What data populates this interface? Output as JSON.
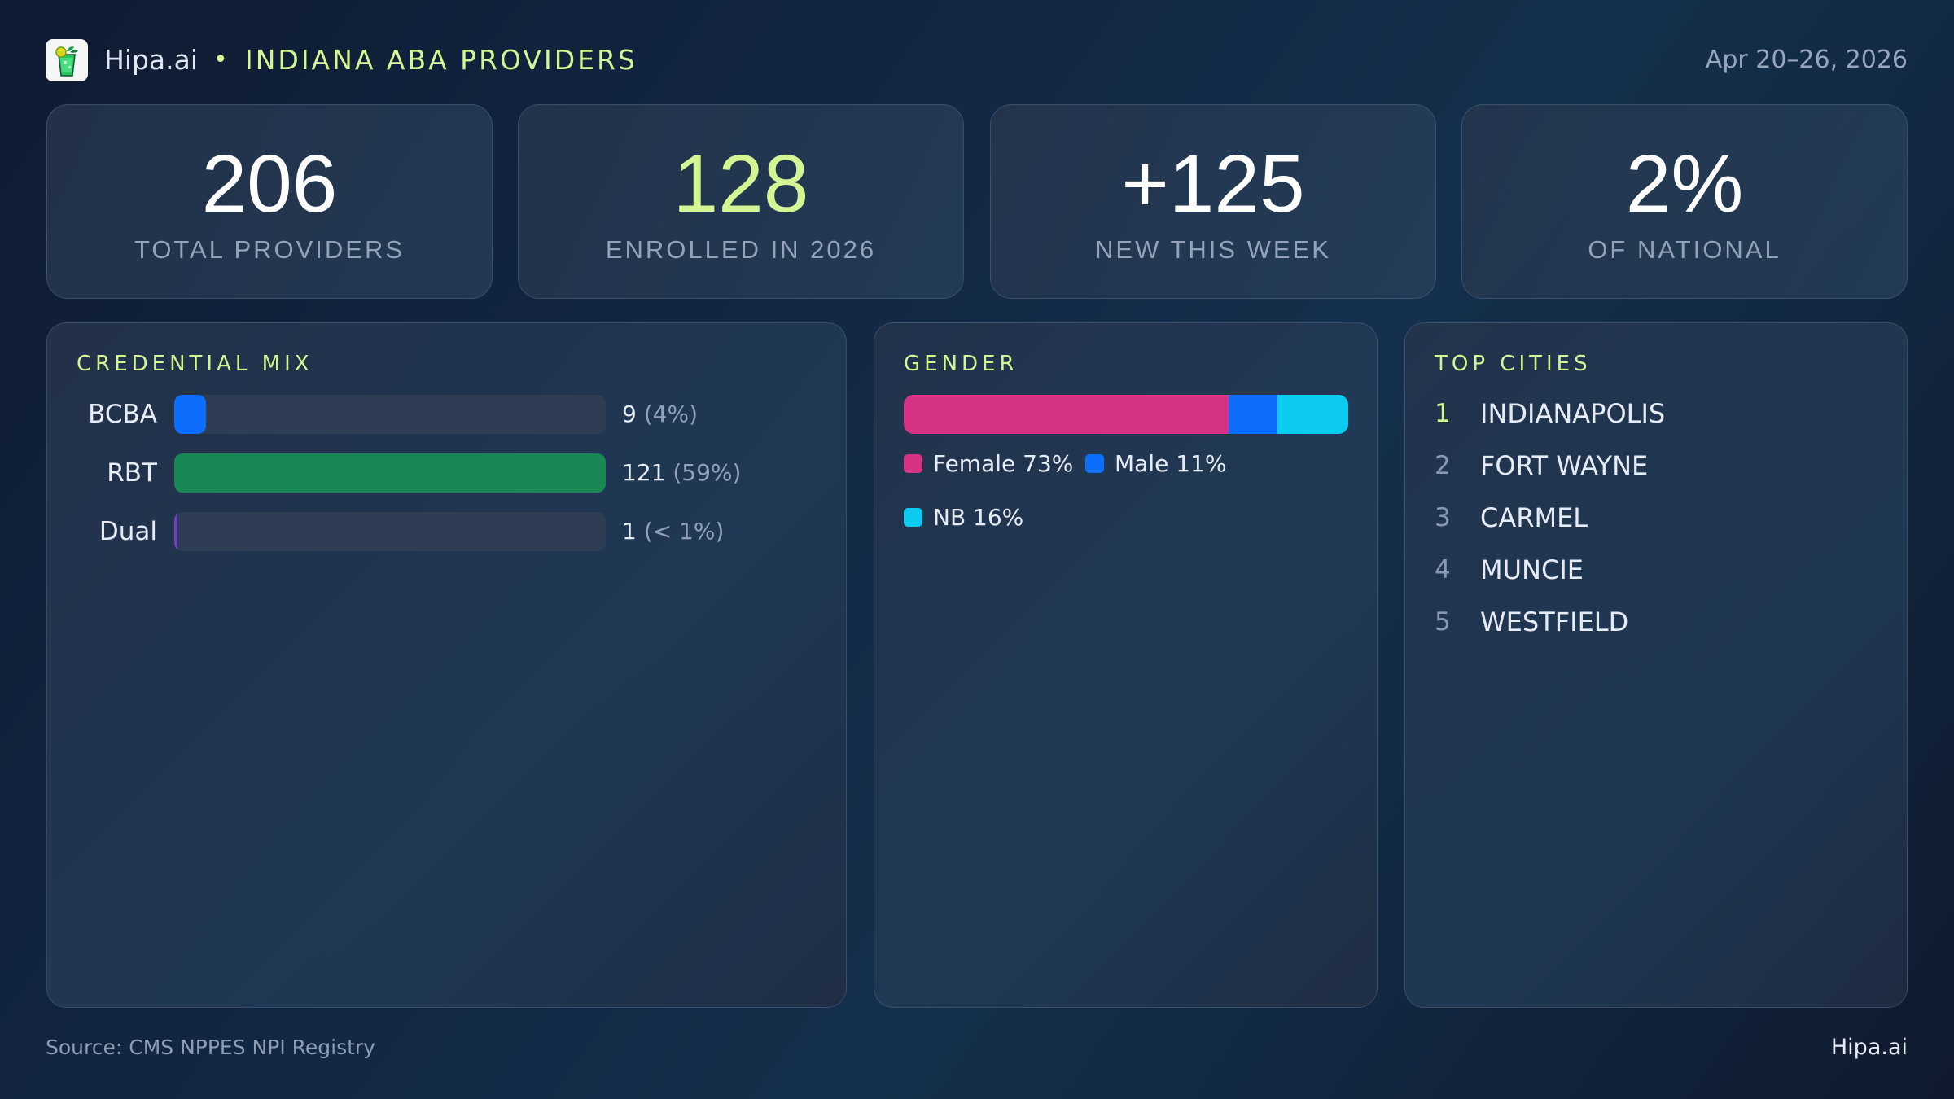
{
  "header": {
    "brand": "Hipa.ai",
    "separator": "•",
    "title": "INDIANA ABA PROVIDERS",
    "date_range": "Apr 20–26, 2026",
    "logo_icon": "mojito-glass-icon"
  },
  "kpis": [
    {
      "value": "206",
      "label": "TOTAL PROVIDERS",
      "accent": false
    },
    {
      "value": "128",
      "label": "ENROLLED IN 2026",
      "accent": true
    },
    {
      "value": "+125",
      "label": "NEW THIS WEEK",
      "accent": false
    },
    {
      "value": "2%",
      "label": "OF NATIONAL",
      "accent": false
    }
  ],
  "credential_mix": {
    "title": "CREDENTIAL MIX",
    "rows": [
      {
        "label": "BCBA",
        "count": "9",
        "pct": "(4%)",
        "value": 9,
        "color": "#0d6efd"
      },
      {
        "label": "RBT",
        "count": "121",
        "pct": "(59%)",
        "value": 121,
        "color": "#198754"
      },
      {
        "label": "Dual",
        "count": "1",
        "pct": "(< 1%)",
        "value": 1,
        "color": "#6f42c1"
      }
    ]
  },
  "gender": {
    "title": "GENDER",
    "segments": [
      {
        "label": "Female 73%",
        "pct": 73,
        "color": "#d63384"
      },
      {
        "label": "Male 11%",
        "pct": 11,
        "color": "#0d6efd"
      },
      {
        "label": "NB 16%",
        "pct": 16,
        "color": "#0dcaf0"
      }
    ]
  },
  "top_cities": {
    "title": "TOP CITIES",
    "items": [
      {
        "rank": "1",
        "name": "INDIANAPOLIS"
      },
      {
        "rank": "2",
        "name": "FORT WAYNE"
      },
      {
        "rank": "3",
        "name": "CARMEL"
      },
      {
        "rank": "4",
        "name": "MUNCIE"
      },
      {
        "rank": "5",
        "name": "WESTFIELD"
      }
    ]
  },
  "footer": {
    "source": "Source: CMS NPPES NPI Registry",
    "brand": "Hipa.ai"
  },
  "colors": {
    "accent": "#d4f593",
    "muted": "#93a2b8",
    "bcba": "#0d6efd",
    "rbt": "#198754",
    "dual": "#6f42c1",
    "female": "#d63384",
    "male": "#0d6efd",
    "nb": "#0dcaf0"
  },
  "chart_data": [
    {
      "type": "bar",
      "title": "CREDENTIAL MIX",
      "orientation": "horizontal",
      "categories": [
        "BCBA",
        "RBT",
        "Dual"
      ],
      "values": [
        9,
        121,
        1
      ],
      "percent_labels": [
        "4%",
        "59%",
        "< 1%"
      ],
      "scale": "relative to max"
    },
    {
      "type": "bar",
      "subtype": "stacked-100",
      "title": "GENDER",
      "categories": [
        "Female",
        "Male",
        "NB"
      ],
      "values": [
        73,
        11,
        16
      ],
      "unit": "%"
    }
  ]
}
